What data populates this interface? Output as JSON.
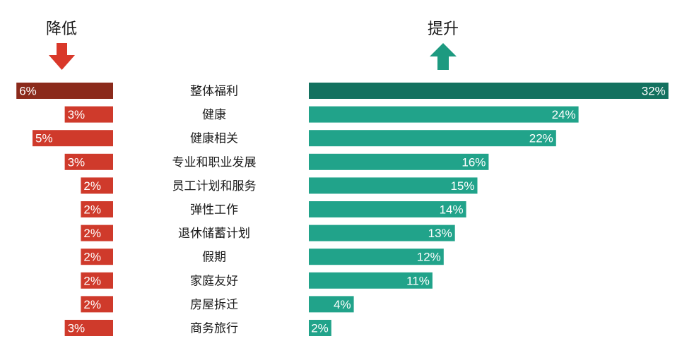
{
  "headers": {
    "decrease": "降低",
    "increase": "提升"
  },
  "chart_data": {
    "type": "bar",
    "categories": [
      "整体福利",
      "健康",
      "健康相关",
      "专业和职业发展",
      "员工计划和服务",
      "弹性工作",
      "退休储蓄计划",
      "假期",
      "家庭友好",
      "房屋拆迁",
      "商务旅行"
    ],
    "series": [
      {
        "name": "降低",
        "values": [
          6,
          3,
          5,
          3,
          2,
          2,
          2,
          2,
          2,
          2,
          3
        ],
        "labels": [
          "6%",
          "3%",
          "5%",
          "3%",
          "2%",
          "2%",
          "2%",
          "2%",
          "2%",
          "2%",
          "3%"
        ]
      },
      {
        "name": "提升",
        "values": [
          32,
          24,
          22,
          16,
          15,
          14,
          13,
          12,
          11,
          4,
          2
        ],
        "labels": [
          "32%",
          "24%",
          "22%",
          "16%",
          "15%",
          "14%",
          "13%",
          "12%",
          "11%",
          "4%",
          "2%"
        ]
      }
    ],
    "colors": {
      "decrease": "#cf3a2b",
      "decrease_top": "#8b2a1b",
      "increase": "#21a38a",
      "increase_top": "#13715f",
      "arrow_down": "#d9382a",
      "arrow_up": "#1d9a80"
    }
  }
}
